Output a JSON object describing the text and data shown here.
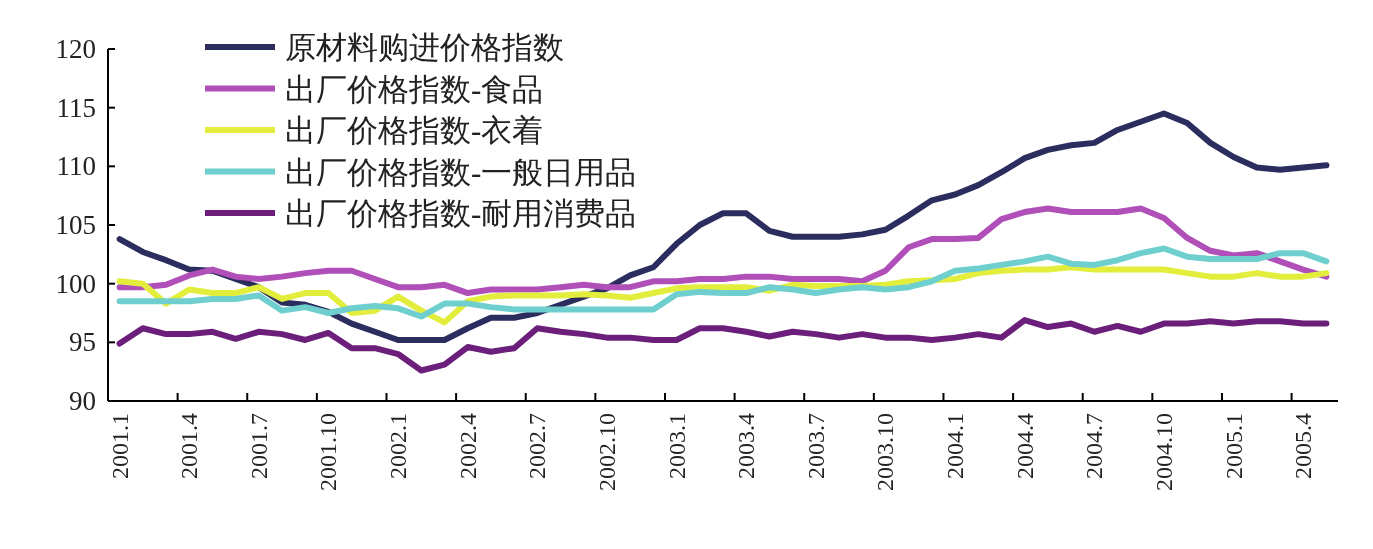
{
  "chart_data": {
    "type": "line",
    "categories": [
      "2001.1",
      null,
      null,
      "2001.4",
      null,
      null,
      "2001.7",
      null,
      null,
      "2001.10",
      null,
      null,
      "2002.1",
      null,
      null,
      "2002.4",
      null,
      null,
      "2002.7",
      null,
      null,
      "2002.10",
      null,
      null,
      "2003.1",
      null,
      null,
      "2003.4",
      null,
      null,
      "2003.7",
      null,
      null,
      "2003.10",
      null,
      null,
      "2004.1",
      null,
      null,
      "2004.4",
      null,
      null,
      "2004.7",
      null,
      null,
      "2004.10",
      null,
      null,
      "2005.1",
      null,
      null,
      "2005.4",
      null
    ],
    "ylim": [
      90,
      120
    ],
    "yticks": [
      90,
      95,
      100,
      105,
      110,
      115,
      120
    ],
    "legend": "top left",
    "line_style": "solid",
    "series": [
      {
        "name": "原材料购进价格指数",
        "color": "#2b2d5e",
        "values": [
          103.8,
          102.7,
          102.0,
          101.2,
          101.1,
          100.4,
          99.7,
          98.4,
          98.2,
          97.6,
          96.6,
          95.9,
          95.2,
          95.2,
          95.2,
          96.2,
          97.1,
          97.1,
          97.5,
          98.2,
          98.9,
          99.6,
          100.7,
          101.4,
          103.4,
          105.0,
          106.0,
          106.0,
          104.5,
          104.0,
          104.0,
          104.0,
          104.2,
          104.6,
          105.8,
          107.1,
          107.6,
          108.4,
          109.5,
          110.7,
          111.4,
          111.8,
          112.0,
          113.1,
          113.8,
          114.5,
          113.7,
          112.0,
          110.8,
          109.9,
          109.7,
          109.9,
          110.1
        ]
      },
      {
        "name": "出厂价格指数-食品",
        "color": "#b04fb8",
        "values": [
          99.7,
          99.7,
          99.9,
          100.7,
          101.2,
          100.6,
          100.4,
          100.6,
          100.9,
          101.1,
          101.1,
          100.4,
          99.7,
          99.7,
          99.9,
          99.2,
          99.5,
          99.5,
          99.5,
          99.7,
          99.9,
          99.7,
          99.7,
          100.2,
          100.2,
          100.4,
          100.4,
          100.6,
          100.6,
          100.4,
          100.4,
          100.4,
          100.2,
          101.1,
          103.1,
          103.8,
          103.8,
          103.9,
          105.5,
          106.1,
          106.4,
          106.1,
          106.1,
          106.1,
          106.4,
          105.6,
          103.9,
          102.8,
          102.4,
          102.6,
          101.9,
          101.2,
          100.6
        ]
      },
      {
        "name": "出厂价格指数-衣着",
        "color": "#e3ee3c",
        "values": [
          100.2,
          100.0,
          98.3,
          99.5,
          99.2,
          99.2,
          99.7,
          98.7,
          99.2,
          99.2,
          97.5,
          97.7,
          98.9,
          97.7,
          96.7,
          98.5,
          98.9,
          99.0,
          99.0,
          99.0,
          99.1,
          99.0,
          98.8,
          99.2,
          99.6,
          99.7,
          99.7,
          99.7,
          99.4,
          99.9,
          99.8,
          99.8,
          99.8,
          99.9,
          100.2,
          100.3,
          100.4,
          100.9,
          101.1,
          101.2,
          101.2,
          101.4,
          101.2,
          101.2,
          101.2,
          101.2,
          100.9,
          100.6,
          100.6,
          100.9,
          100.6,
          100.6,
          100.9
        ]
      },
      {
        "name": "出厂价格指数-一般日用品",
        "color": "#6fcfcf",
        "values": [
          98.5,
          98.5,
          98.5,
          98.5,
          98.7,
          98.7,
          99.0,
          97.7,
          98.0,
          97.5,
          97.9,
          98.1,
          97.9,
          97.2,
          98.3,
          98.3,
          98.0,
          97.8,
          97.8,
          97.8,
          97.8,
          97.8,
          97.8,
          97.8,
          99.1,
          99.3,
          99.2,
          99.2,
          99.7,
          99.5,
          99.2,
          99.5,
          99.7,
          99.5,
          99.7,
          100.2,
          101.1,
          101.3,
          101.6,
          101.9,
          102.3,
          101.7,
          101.6,
          102.0,
          102.6,
          103.0,
          102.3,
          102.1,
          102.1,
          102.1,
          102.6,
          102.6,
          101.9
        ]
      },
      {
        "name": "出厂价格指数-耐用消费品",
        "color": "#6b1f7a",
        "values": [
          94.9,
          96.2,
          95.7,
          95.7,
          95.9,
          95.3,
          95.9,
          95.7,
          95.2,
          95.8,
          94.5,
          94.5,
          94.0,
          92.6,
          93.1,
          94.6,
          94.2,
          94.5,
          96.2,
          95.9,
          95.7,
          95.4,
          95.4,
          95.2,
          95.2,
          96.2,
          96.2,
          95.9,
          95.5,
          95.9,
          95.7,
          95.4,
          95.7,
          95.4,
          95.4,
          95.2,
          95.4,
          95.7,
          95.4,
          96.9,
          96.3,
          96.6,
          95.9,
          96.4,
          95.9,
          96.6,
          96.6,
          96.8,
          96.6,
          96.8,
          96.8,
          96.6,
          96.6
        ]
      }
    ]
  }
}
